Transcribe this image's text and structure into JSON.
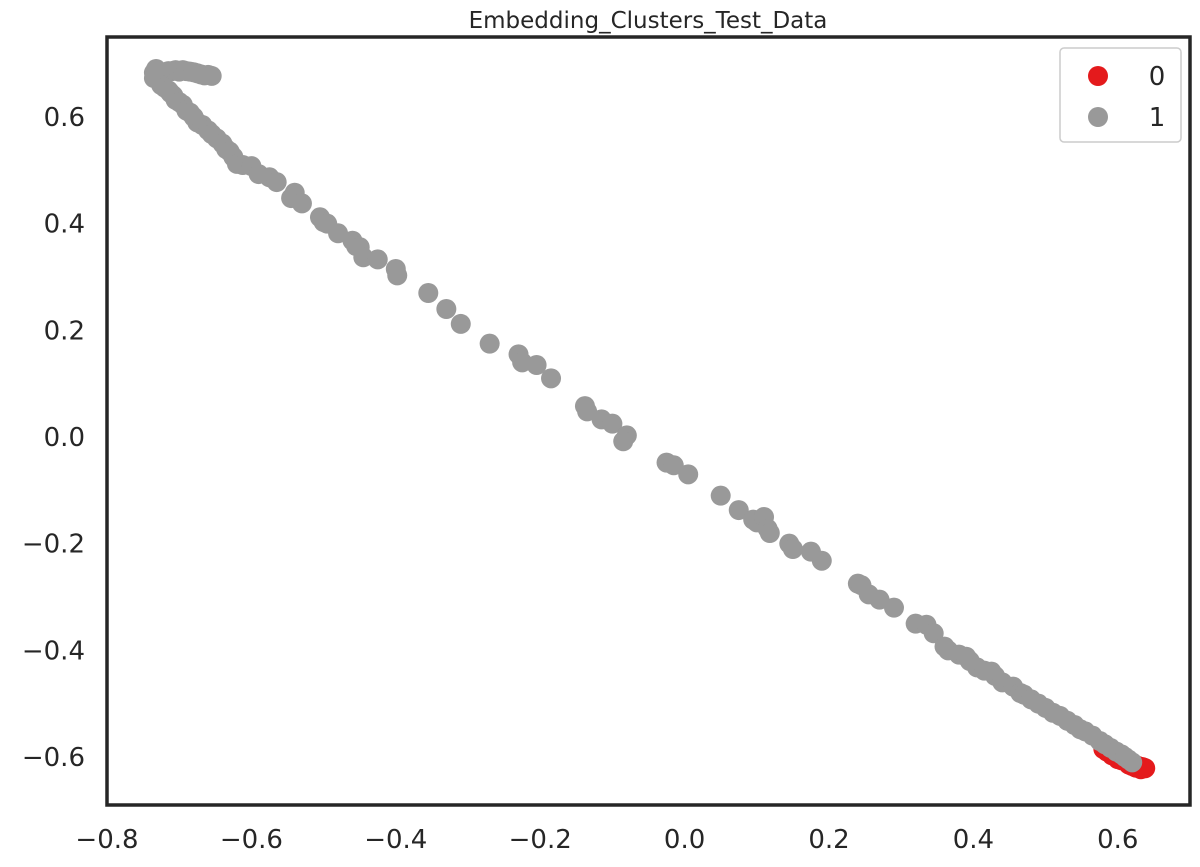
{
  "chart_data": {
    "type": "scatter",
    "title": "Embedding_Clusters_Test_Data",
    "xlabel": "",
    "ylabel": "",
    "xlim": [
      -0.8,
      0.7
    ],
    "ylim": [
      -0.69,
      0.75
    ],
    "xticks": [
      -0.8,
      -0.6,
      -0.4,
      -0.2,
      0.0,
      0.2,
      0.4,
      0.6
    ],
    "xtick_labels": [
      "−0.8",
      "−0.6",
      "−0.4",
      "−0.2",
      "0.0",
      "0.2",
      "0.4",
      "0.6"
    ],
    "yticks": [
      -0.6,
      -0.4,
      -0.2,
      0.0,
      0.2,
      0.4,
      0.6
    ],
    "ytick_labels": [
      "−0.6",
      "−0.4",
      "−0.2",
      "0.0",
      "0.2",
      "0.4",
      "0.6"
    ],
    "grid": false,
    "legend_position": "top-right",
    "series": [
      {
        "name": "0",
        "color": "#e41a1c",
        "points": [
          [
            0.58,
            -0.585
          ],
          [
            0.585,
            -0.59
          ],
          [
            0.59,
            -0.592
          ],
          [
            0.595,
            -0.595
          ],
          [
            0.6,
            -0.598
          ],
          [
            0.603,
            -0.601
          ],
          [
            0.606,
            -0.603
          ],
          [
            0.609,
            -0.605
          ],
          [
            0.612,
            -0.607
          ],
          [
            0.615,
            -0.609
          ],
          [
            0.618,
            -0.611
          ],
          [
            0.62,
            -0.613
          ],
          [
            0.622,
            -0.614
          ],
          [
            0.624,
            -0.615
          ],
          [
            0.626,
            -0.616
          ],
          [
            0.628,
            -0.617
          ],
          [
            0.63,
            -0.618
          ],
          [
            0.632,
            -0.619
          ],
          [
            0.634,
            -0.619
          ],
          [
            0.636,
            -0.62
          ],
          [
            0.638,
            -0.621
          ],
          [
            0.625,
            -0.62
          ],
          [
            0.615,
            -0.614
          ],
          [
            0.605,
            -0.606
          ],
          [
            0.6,
            -0.604
          ],
          [
            0.632,
            -0.623
          ],
          [
            0.62,
            -0.617
          ],
          [
            0.592,
            -0.597
          ]
        ]
      },
      {
        "name": "1",
        "color": "#999999",
        "points": [
          [
            -0.735,
            0.683
          ],
          [
            -0.73,
            0.677
          ],
          [
            -0.725,
            0.684
          ],
          [
            -0.72,
            0.683
          ],
          [
            -0.715,
            0.686
          ],
          [
            -0.71,
            0.686
          ],
          [
            -0.705,
            0.688
          ],
          [
            -0.7,
            0.685
          ],
          [
            -0.695,
            0.688
          ],
          [
            -0.69,
            0.686
          ],
          [
            -0.685,
            0.685
          ],
          [
            -0.68,
            0.684
          ],
          [
            -0.675,
            0.682
          ],
          [
            -0.67,
            0.68
          ],
          [
            -0.665,
            0.678
          ],
          [
            -0.66,
            0.679
          ],
          [
            -0.655,
            0.677
          ],
          [
            -0.735,
            0.673
          ],
          [
            -0.728,
            0.668
          ],
          [
            -0.732,
            0.69
          ],
          [
            -0.725,
            0.66
          ],
          [
            -0.72,
            0.655
          ],
          [
            -0.715,
            0.65
          ],
          [
            -0.712,
            0.645
          ],
          [
            -0.708,
            0.64
          ],
          [
            -0.705,
            0.632
          ],
          [
            -0.7,
            0.628
          ],
          [
            -0.695,
            0.623
          ],
          [
            -0.69,
            0.612
          ],
          [
            -0.685,
            0.608
          ],
          [
            -0.68,
            0.6
          ],
          [
            -0.675,
            0.59
          ],
          [
            -0.668,
            0.585
          ],
          [
            -0.66,
            0.575
          ],
          [
            -0.655,
            0.568
          ],
          [
            -0.648,
            0.56
          ],
          [
            -0.64,
            0.55
          ],
          [
            -0.635,
            0.54
          ],
          [
            -0.63,
            0.535
          ],
          [
            -0.625,
            0.525
          ],
          [
            -0.62,
            0.512
          ],
          [
            -0.612,
            0.51
          ],
          [
            -0.6,
            0.508
          ],
          [
            -0.59,
            0.493
          ],
          [
            -0.575,
            0.487
          ],
          [
            -0.565,
            0.478
          ],
          [
            -0.545,
            0.448
          ],
          [
            -0.54,
            0.458
          ],
          [
            -0.53,
            0.438
          ],
          [
            -0.505,
            0.412
          ],
          [
            -0.5,
            0.403
          ],
          [
            -0.495,
            0.4
          ],
          [
            -0.48,
            0.382
          ],
          [
            -0.46,
            0.368
          ],
          [
            -0.455,
            0.358
          ],
          [
            -0.45,
            0.356
          ],
          [
            -0.445,
            0.337
          ],
          [
            -0.425,
            0.333
          ],
          [
            -0.4,
            0.315
          ],
          [
            -0.398,
            0.303
          ],
          [
            -0.355,
            0.27
          ],
          [
            -0.33,
            0.24
          ],
          [
            -0.31,
            0.212
          ],
          [
            -0.27,
            0.175
          ],
          [
            -0.23,
            0.155
          ],
          [
            -0.225,
            0.14
          ],
          [
            -0.205,
            0.135
          ],
          [
            -0.185,
            0.11
          ],
          [
            -0.138,
            0.058
          ],
          [
            -0.135,
            0.048
          ],
          [
            -0.115,
            0.033
          ],
          [
            -0.1,
            0.025
          ],
          [
            -0.08,
            0.003
          ],
          [
            -0.085,
            -0.008
          ],
          [
            -0.025,
            -0.048
          ],
          [
            -0.015,
            -0.053
          ],
          [
            0.005,
            -0.07
          ],
          [
            0.05,
            -0.11
          ],
          [
            0.075,
            -0.137
          ],
          [
            0.095,
            -0.155
          ],
          [
            0.1,
            -0.16
          ],
          [
            0.11,
            -0.15
          ],
          [
            0.115,
            -0.172
          ],
          [
            0.118,
            -0.18
          ],
          [
            0.145,
            -0.2
          ],
          [
            0.15,
            -0.21
          ],
          [
            0.175,
            -0.215
          ],
          [
            0.19,
            -0.232
          ],
          [
            0.24,
            -0.275
          ],
          [
            0.245,
            -0.278
          ],
          [
            0.255,
            -0.295
          ],
          [
            0.27,
            -0.305
          ],
          [
            0.29,
            -0.32
          ],
          [
            0.32,
            -0.35
          ],
          [
            0.335,
            -0.352
          ],
          [
            0.345,
            -0.368
          ],
          [
            0.36,
            -0.393
          ],
          [
            0.365,
            -0.4
          ],
          [
            0.38,
            -0.408
          ],
          [
            0.39,
            -0.412
          ],
          [
            0.395,
            -0.42
          ],
          [
            0.405,
            -0.432
          ],
          [
            0.415,
            -0.438
          ],
          [
            0.425,
            -0.44
          ],
          [
            0.43,
            -0.448
          ],
          [
            0.44,
            -0.46
          ],
          [
            0.455,
            -0.468
          ],
          [
            0.465,
            -0.48
          ],
          [
            0.47,
            -0.483
          ],
          [
            0.48,
            -0.492
          ],
          [
            0.49,
            -0.5
          ],
          [
            0.5,
            -0.508
          ],
          [
            0.51,
            -0.517
          ],
          [
            0.52,
            -0.523
          ],
          [
            0.53,
            -0.532
          ],
          [
            0.54,
            -0.54
          ],
          [
            0.548,
            -0.548
          ],
          [
            0.555,
            -0.552
          ],
          [
            0.565,
            -0.56
          ],
          [
            0.575,
            -0.57
          ],
          [
            0.582,
            -0.576
          ],
          [
            0.59,
            -0.583
          ],
          [
            0.598,
            -0.59
          ],
          [
            0.605,
            -0.595
          ],
          [
            0.61,
            -0.6
          ],
          [
            0.615,
            -0.605
          ],
          [
            0.62,
            -0.61
          ]
        ]
      }
    ]
  }
}
